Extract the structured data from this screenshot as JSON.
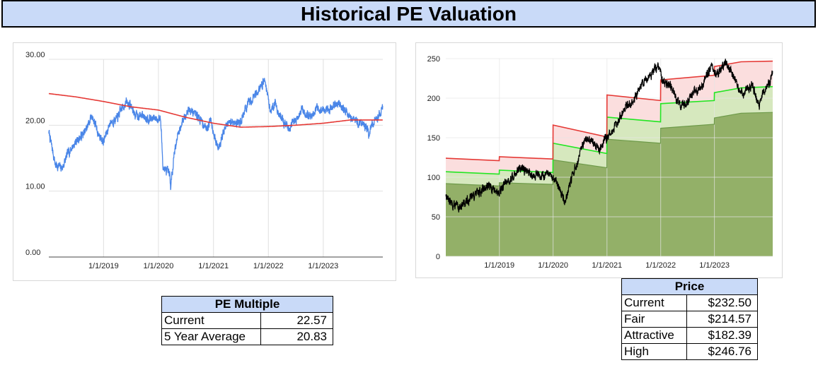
{
  "title": "Historical PE Valuation",
  "chart_data": [
    {
      "type": "line",
      "y_ticks": [
        "0.00",
        "10.00",
        "20.00",
        "30.00"
      ],
      "ylim": [
        0,
        30
      ],
      "x_ticks": [
        "1/1/2019",
        "1/1/2020",
        "1/1/2021",
        "1/1/2022",
        "1/1/2023"
      ],
      "xlim": [
        "2018-01-02",
        "2024-02-01"
      ],
      "grid": true,
      "colors": {
        "pe": "#4a86e8",
        "average": "#e53935"
      },
      "series": [
        {
          "key": "pe",
          "points": [
            [
              "2018-01-02",
              19.0
            ],
            [
              "2018-02-15",
              14.0
            ],
            [
              "2018-04-01",
              13.5
            ],
            [
              "2018-05-15",
              16.0
            ],
            [
              "2018-07-01",
              17.5
            ],
            [
              "2018-09-01",
              19.0
            ],
            [
              "2018-10-15",
              21.5
            ],
            [
              "2018-12-01",
              18.5
            ],
            [
              "2019-01-01",
              17.5
            ],
            [
              "2019-02-15",
              20.5
            ],
            [
              "2019-04-01",
              21.0
            ],
            [
              "2019-05-01",
              22.5
            ],
            [
              "2019-06-01",
              23.5
            ],
            [
              "2019-07-01",
              23.0
            ],
            [
              "2019-08-01",
              21.5
            ],
            [
              "2019-09-15",
              21.5
            ],
            [
              "2019-11-01",
              21.0
            ],
            [
              "2019-12-01",
              21.0
            ],
            [
              "2020-01-15",
              21.0
            ],
            [
              "2020-02-01",
              13.5
            ],
            [
              "2020-03-15",
              12.5
            ],
            [
              "2020-03-23",
              10.5
            ],
            [
              "2020-04-15",
              16.0
            ],
            [
              "2020-05-15",
              19.0
            ],
            [
              "2020-06-15",
              21.0
            ],
            [
              "2020-07-15",
              22.5
            ],
            [
              "2020-08-15",
              22.0
            ],
            [
              "2020-09-15",
              21.5
            ],
            [
              "2020-10-15",
              20.5
            ],
            [
              "2020-11-15",
              19.5
            ],
            [
              "2020-12-15",
              21.0
            ],
            [
              "2021-01-15",
              17.5
            ],
            [
              "2021-02-01",
              16.5
            ],
            [
              "2021-03-01",
              18.5
            ],
            [
              "2021-04-01",
              20.0
            ],
            [
              "2021-05-01",
              20.5
            ],
            [
              "2021-06-01",
              20.5
            ],
            [
              "2021-07-01",
              20.5
            ],
            [
              "2021-08-01",
              22.5
            ],
            [
              "2021-09-01",
              23.5
            ],
            [
              "2021-10-01",
              24.5
            ],
            [
              "2021-11-15",
              26.0
            ],
            [
              "2021-12-10",
              27.0
            ],
            [
              "2022-01-15",
              22.0
            ],
            [
              "2022-02-15",
              23.5
            ],
            [
              "2022-03-15",
              21.5
            ],
            [
              "2022-04-15",
              20.5
            ],
            [
              "2022-05-15",
              19.5
            ],
            [
              "2022-06-15",
              20.5
            ],
            [
              "2022-07-15",
              21.0
            ],
            [
              "2022-08-15",
              22.5
            ],
            [
              "2022-09-15",
              21.5
            ],
            [
              "2022-10-15",
              21.5
            ],
            [
              "2022-11-15",
              22.5
            ],
            [
              "2022-12-15",
              22.5
            ],
            [
              "2023-01-15",
              22.0
            ],
            [
              "2023-02-15",
              22.5
            ],
            [
              "2023-03-15",
              23.0
            ],
            [
              "2023-04-15",
              23.5
            ],
            [
              "2023-05-15",
              22.5
            ],
            [
              "2023-06-15",
              21.5
            ],
            [
              "2023-07-15",
              21.0
            ],
            [
              "2023-08-15",
              20.5
            ],
            [
              "2023-09-15",
              20.5
            ],
            [
              "2023-10-15",
              19.5
            ],
            [
              "2023-11-01",
              18.5
            ],
            [
              "2023-11-15",
              20.0
            ],
            [
              "2023-12-15",
              20.5
            ],
            [
              "2024-01-15",
              22.0
            ],
            [
              "2024-02-01",
              22.6
            ]
          ]
        },
        {
          "key": "average",
          "points": [
            [
              "2018-01-02",
              24.8
            ],
            [
              "2018-07-01",
              24.3
            ],
            [
              "2019-01-01",
              23.6
            ],
            [
              "2019-07-01",
              22.8
            ],
            [
              "2020-01-01",
              22.3
            ],
            [
              "2020-07-01",
              21.2
            ],
            [
              "2021-01-01",
              20.3
            ],
            [
              "2021-07-01",
              19.7
            ],
            [
              "2022-01-01",
              19.8
            ],
            [
              "2022-07-01",
              20.0
            ],
            [
              "2023-01-01",
              20.3
            ],
            [
              "2023-07-01",
              20.8
            ],
            [
              "2024-02-01",
              20.8
            ]
          ]
        }
      ]
    },
    {
      "type": "area",
      "y_ticks": [
        "0",
        "50",
        "100",
        "150",
        "200",
        "250"
      ],
      "ylim": [
        0,
        250
      ],
      "x_ticks": [
        "1/1/2019",
        "1/1/2020",
        "1/1/2021",
        "1/1/2022",
        "1/1/2023"
      ],
      "xlim": [
        "2018-01-02",
        "2024-02-01"
      ],
      "grid": true,
      "colors": {
        "high": "#e53935",
        "fair": "#22e622",
        "attractive_fill": "#93b068",
        "fair_fill": "#d6e8be",
        "high_fill": "#fbdede",
        "price": "#000000"
      },
      "series": [
        {
          "key": "attractive",
          "points": [
            [
              "2018-01-02",
              92
            ],
            [
              "2018-12-31",
              89
            ],
            [
              "2019-01-01",
              93
            ],
            [
              "2019-12-31",
              91
            ],
            [
              "2020-01-01",
              122
            ],
            [
              "2020-12-31",
              112
            ],
            [
              "2021-01-01",
              148
            ],
            [
              "2021-12-31",
              143
            ],
            [
              "2022-01-01",
              162
            ],
            [
              "2022-12-31",
              167
            ],
            [
              "2023-01-01",
              175
            ],
            [
              "2023-07-01",
              181
            ],
            [
              "2024-02-01",
              182
            ]
          ]
        },
        {
          "key": "fair",
          "points": [
            [
              "2018-01-02",
              107
            ],
            [
              "2018-12-31",
              104
            ],
            [
              "2019-01-01",
              109
            ],
            [
              "2019-12-31",
              106
            ],
            [
              "2020-01-01",
              143
            ],
            [
              "2020-12-31",
              130
            ],
            [
              "2021-01-01",
              176
            ],
            [
              "2021-12-31",
              170
            ],
            [
              "2022-01-01",
              193
            ],
            [
              "2022-12-31",
              197
            ],
            [
              "2023-01-01",
              207
            ],
            [
              "2023-07-01",
              213
            ],
            [
              "2024-02-01",
              214.57
            ]
          ]
        },
        {
          "key": "high",
          "points": [
            [
              "2018-01-02",
              124
            ],
            [
              "2018-12-31",
              121
            ],
            [
              "2019-01-01",
              126
            ],
            [
              "2019-12-31",
              123
            ],
            [
              "2020-01-01",
              166
            ],
            [
              "2020-12-31",
              151
            ],
            [
              "2021-01-01",
              204
            ],
            [
              "2021-12-31",
              197
            ],
            [
              "2022-01-01",
              223
            ],
            [
              "2022-12-31",
              229
            ],
            [
              "2023-01-01",
              240
            ],
            [
              "2023-07-01",
              246
            ],
            [
              "2024-02-01",
              246.76
            ]
          ]
        },
        {
          "key": "price",
          "points": [
            [
              "2018-01-02",
              78
            ],
            [
              "2018-02-15",
              65
            ],
            [
              "2018-04-01",
              62
            ],
            [
              "2018-05-15",
              68
            ],
            [
              "2018-07-01",
              76
            ],
            [
              "2018-09-01",
              83
            ],
            [
              "2018-10-15",
              90
            ],
            [
              "2018-12-01",
              83
            ],
            [
              "2019-01-01",
              80
            ],
            [
              "2019-02-15",
              95
            ],
            [
              "2019-04-01",
              100
            ],
            [
              "2019-05-01",
              108
            ],
            [
              "2019-06-01",
              111
            ],
            [
              "2019-07-01",
              109
            ],
            [
              "2019-08-01",
              104
            ],
            [
              "2019-09-15",
              103
            ],
            [
              "2019-11-01",
              102
            ],
            [
              "2019-12-01",
              103
            ],
            [
              "2020-01-15",
              95
            ],
            [
              "2020-02-15",
              85
            ],
            [
              "2020-03-23",
              68
            ],
            [
              "2020-04-15",
              86
            ],
            [
              "2020-05-15",
              104
            ],
            [
              "2020-06-15",
              118
            ],
            [
              "2020-07-15",
              138
            ],
            [
              "2020-08-15",
              147
            ],
            [
              "2020-09-15",
              149
            ],
            [
              "2020-10-15",
              140
            ],
            [
              "2020-11-15",
              135
            ],
            [
              "2020-12-15",
              148
            ],
            [
              "2021-01-15",
              152
            ],
            [
              "2021-02-15",
              160
            ],
            [
              "2021-03-15",
              171
            ],
            [
              "2021-04-15",
              183
            ],
            [
              "2021-05-15",
              192
            ],
            [
              "2021-06-15",
              193
            ],
            [
              "2021-07-15",
              202
            ],
            [
              "2021-08-15",
              215
            ],
            [
              "2021-09-15",
              222
            ],
            [
              "2021-10-15",
              228
            ],
            [
              "2021-11-15",
              235
            ],
            [
              "2021-12-15",
              240
            ],
            [
              "2022-01-15",
              220
            ],
            [
              "2022-02-15",
              215
            ],
            [
              "2022-03-15",
              215
            ],
            [
              "2022-04-15",
              200
            ],
            [
              "2022-05-15",
              190
            ],
            [
              "2022-06-15",
              192
            ],
            [
              "2022-07-15",
              200
            ],
            [
              "2022-08-15",
              210
            ],
            [
              "2022-09-15",
              210
            ],
            [
              "2022-10-15",
              218
            ],
            [
              "2022-11-15",
              232
            ],
            [
              "2022-12-15",
              240
            ],
            [
              "2023-01-15",
              228
            ],
            [
              "2023-02-15",
              235
            ],
            [
              "2023-03-15",
              245
            ],
            [
              "2023-04-15",
              238
            ],
            [
              "2023-05-15",
              225
            ],
            [
              "2023-06-15",
              210
            ],
            [
              "2023-07-15",
              205
            ],
            [
              "2023-08-15",
              212
            ],
            [
              "2023-09-15",
              218
            ],
            [
              "2023-10-15",
              200
            ],
            [
              "2023-11-01",
              188
            ],
            [
              "2023-11-15",
              200
            ],
            [
              "2023-12-15",
              212
            ],
            [
              "2024-01-15",
              222
            ],
            [
              "2024-02-01",
              232.5
            ]
          ]
        }
      ]
    }
  ],
  "pe_table": {
    "header": "PE Multiple",
    "rows": [
      {
        "label": "Current",
        "value": "22.57"
      },
      {
        "label": "5 Year Average",
        "value": "20.83"
      }
    ]
  },
  "price_table": {
    "header": "Price",
    "rows": [
      {
        "label": "Current",
        "value": "$232.50"
      },
      {
        "label": "Fair",
        "value": "$214.57"
      },
      {
        "label": "Attractive",
        "value": "$182.39"
      },
      {
        "label": "High",
        "value": "$246.76"
      }
    ]
  }
}
